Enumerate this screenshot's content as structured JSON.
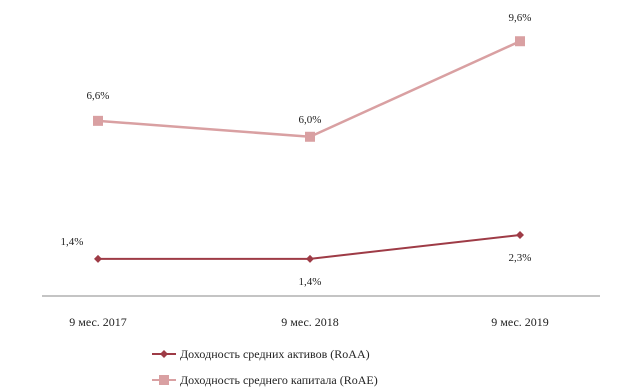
{
  "chart_data": {
    "type": "line",
    "categories": [
      "9 мес. 2017",
      "9 мес. 2018",
      "9 мес. 2019"
    ],
    "series": [
      {
        "name": "Доходность средних активов (RoAA)",
        "values": [
          1.4,
          1.4,
          2.3
        ],
        "labels": [
          "1,4%",
          "1,4%",
          "2,3%"
        ],
        "color": "#9e3b46",
        "marker": "diamond"
      },
      {
        "name": "Доходность среднего капитала (RoAE)",
        "values": [
          6.6,
          6.0,
          9.6
        ],
        "labels": [
          "6,6%",
          "6,0%",
          "9,6%"
        ],
        "color": "#d9a0a2",
        "marker": "square"
      }
    ],
    "ylim": [
      0,
      10.4
    ],
    "grid": false,
    "legend_position": "bottom"
  }
}
